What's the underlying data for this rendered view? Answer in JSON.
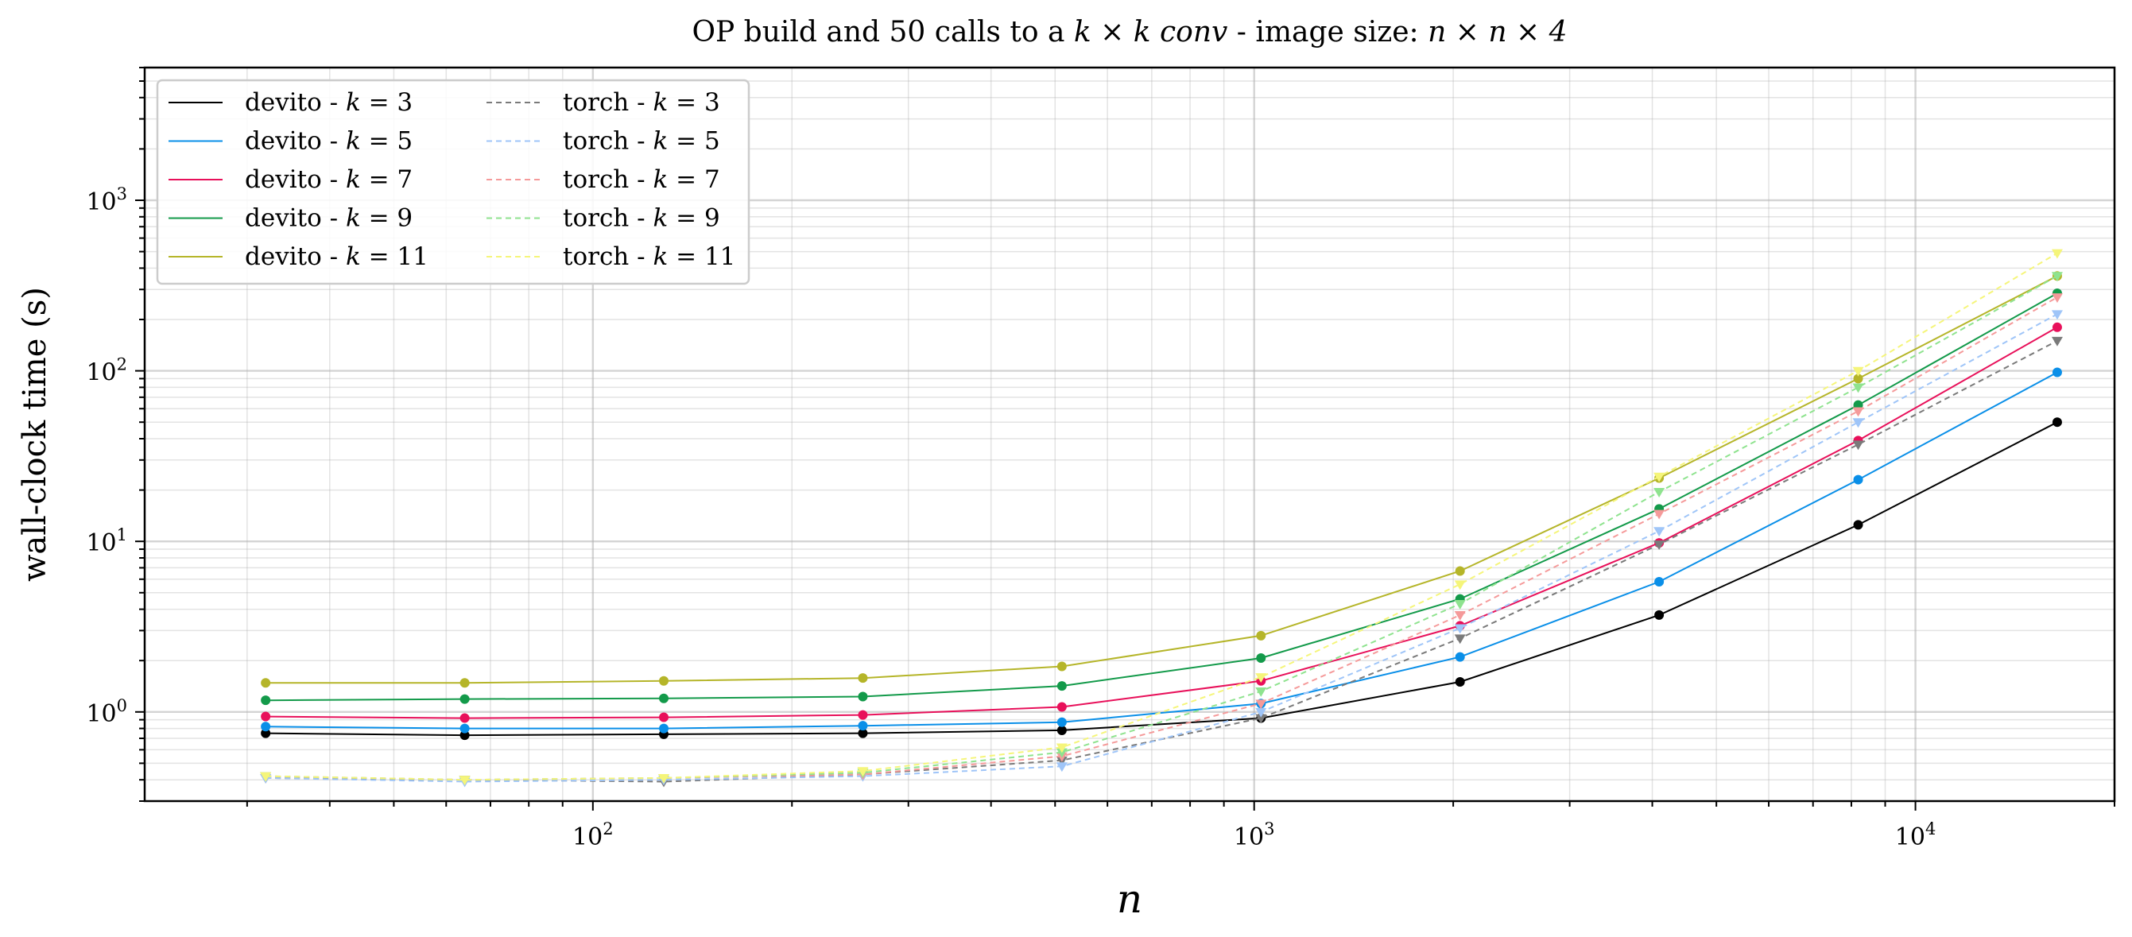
{
  "chart_data": {
    "type": "line",
    "title": "OP build and 50 calls to a k × k conv - image size: n × n × 4",
    "title_parts": {
      "prefix": "OP build and 50 calls to a ",
      "k_expr": "k × k",
      "conv": "conv",
      "middle": " - image size: ",
      "n_expr": "n × n × 4"
    },
    "xlabel": "n",
    "ylabel": "wall-clock time (s)",
    "xscale": "log",
    "yscale": "log",
    "xlim": [
      21,
      20000
    ],
    "ylim": [
      0.3,
      6000
    ],
    "grid": true,
    "legend": {
      "position": "top-left",
      "columns": 2
    },
    "x_ticks": [
      {
        "base": "10",
        "exp": "2",
        "value": 100
      },
      {
        "base": "10",
        "exp": "3",
        "value": 1000
      },
      {
        "base": "10",
        "exp": "4",
        "value": 10000
      }
    ],
    "y_ticks": [
      {
        "base": "10",
        "exp": "0",
        "value": 1
      },
      {
        "base": "10",
        "exp": "1",
        "value": 10
      },
      {
        "base": "10",
        "exp": "2",
        "value": 100
      },
      {
        "base": "10",
        "exp": "3",
        "value": 1000
      }
    ],
    "x": [
      32,
      64,
      128,
      256,
      512,
      1024,
      2048,
      4096,
      8192,
      16384
    ],
    "series": [
      {
        "name": "devito - k = 3",
        "framework": "devito",
        "k": "3",
        "color": "#000000",
        "style": "solid",
        "marker": "circle",
        "values": [
          0.75,
          0.73,
          0.74,
          0.75,
          0.78,
          0.92,
          1.5,
          3.7,
          12.5,
          50
        ]
      },
      {
        "name": "devito - k = 5",
        "framework": "devito",
        "k": "5",
        "color": "#0a8fe8",
        "style": "solid",
        "marker": "circle",
        "values": [
          0.82,
          0.8,
          0.8,
          0.83,
          0.87,
          1.12,
          2.1,
          5.8,
          23,
          98
        ]
      },
      {
        "name": "devito - k = 7",
        "framework": "devito",
        "k": "7",
        "color": "#e8105a",
        "style": "solid",
        "marker": "circle",
        "values": [
          0.94,
          0.92,
          0.93,
          0.96,
          1.07,
          1.52,
          3.2,
          9.8,
          39,
          180
        ]
      },
      {
        "name": "devito - k = 9",
        "framework": "devito",
        "k": "9",
        "color": "#139a4a",
        "style": "solid",
        "marker": "circle",
        "values": [
          1.17,
          1.19,
          1.2,
          1.23,
          1.42,
          2.07,
          4.6,
          15.5,
          63,
          285
        ]
      },
      {
        "name": "devito - k = 11",
        "framework": "devito",
        "k": "11",
        "color": "#b5b529",
        "style": "solid",
        "marker": "circle",
        "values": [
          1.48,
          1.48,
          1.52,
          1.58,
          1.85,
          2.8,
          6.7,
          23.5,
          90,
          360
        ]
      },
      {
        "name": "torch - k = 3",
        "framework": "torch",
        "k": "3",
        "color": "#7a7a7a",
        "style": "dashed",
        "marker": "triangle-down",
        "values": [
          0.41,
          0.4,
          0.39,
          0.43,
          0.52,
          0.92,
          2.7,
          9.6,
          37,
          150
        ]
      },
      {
        "name": "torch - k = 5",
        "framework": "torch",
        "k": "5",
        "color": "#9fc5f8",
        "style": "dashed",
        "marker": "triangle-down",
        "values": [
          0.41,
          0.39,
          0.4,
          0.42,
          0.48,
          1.0,
          3.1,
          11.5,
          50,
          215
        ]
      },
      {
        "name": "torch - k = 7",
        "framework": "torch",
        "k": "7",
        "color": "#f59a9a",
        "style": "dashed",
        "marker": "triangle-down",
        "values": [
          0.42,
          0.4,
          0.41,
          0.43,
          0.55,
          1.12,
          3.7,
          14.5,
          58,
          270
        ]
      },
      {
        "name": "torch - k = 9",
        "framework": "torch",
        "k": "9",
        "color": "#8fe38f",
        "style": "dashed",
        "marker": "triangle-down",
        "values": [
          0.42,
          0.4,
          0.41,
          0.44,
          0.58,
          1.32,
          4.3,
          19.5,
          80,
          360
        ]
      },
      {
        "name": "torch - k = 11",
        "framework": "torch",
        "k": "11",
        "color": "#f5f57a",
        "style": "dashed",
        "marker": "triangle-down",
        "values": [
          0.42,
          0.4,
          0.41,
          0.45,
          0.62,
          1.6,
          5.6,
          24,
          100,
          490
        ]
      }
    ]
  }
}
